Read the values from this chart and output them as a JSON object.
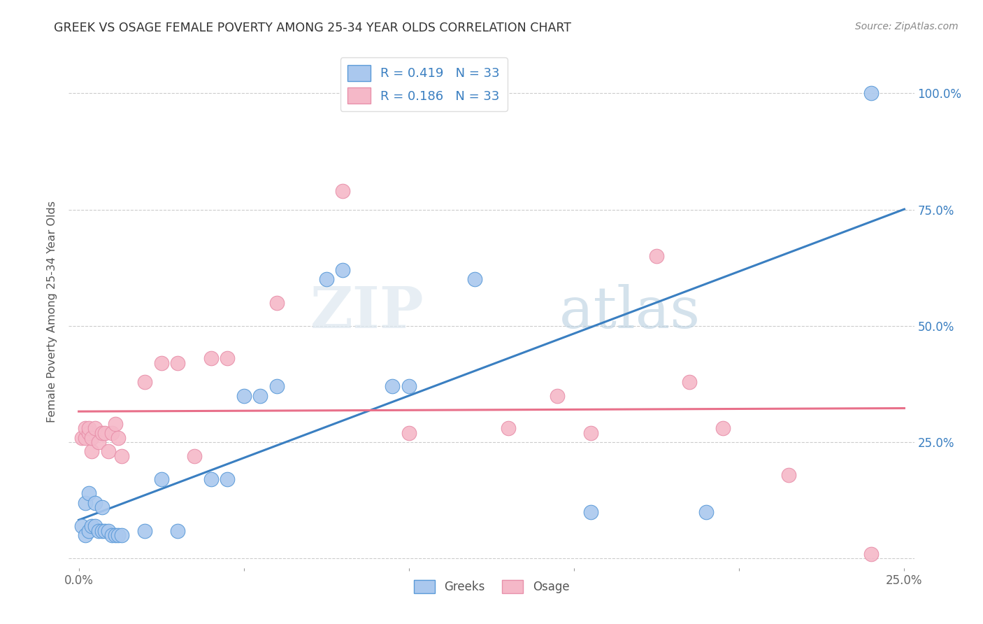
{
  "title": "GREEK VS OSAGE FEMALE POVERTY AMONG 25-34 YEAR OLDS CORRELATION CHART",
  "source": "Source: ZipAtlas.com",
  "ylabel": "Female Poverty Among 25-34 Year Olds",
  "watermark_zip": "ZIP",
  "watermark_atlas": "atlas",
  "xlim": [
    0.0,
    0.25
  ],
  "ylim": [
    -0.02,
    1.08
  ],
  "xtick_positions": [
    0.0,
    0.05,
    0.1,
    0.15,
    0.2,
    0.25
  ],
  "xticklabels": [
    "0.0%",
    "",
    "",
    "",
    "",
    "25.0%"
  ],
  "ytick_positions": [
    0.0,
    0.25,
    0.5,
    0.75,
    1.0
  ],
  "yticklabels_right": [
    "",
    "25.0%",
    "50.0%",
    "75.0%",
    "100.0%"
  ],
  "R_blue": "0.419",
  "N_blue": "33",
  "R_pink": "0.186",
  "N_pink": "33",
  "blue_fill": "#aac8ee",
  "pink_fill": "#f5b8c8",
  "blue_edge": "#5a9ad8",
  "pink_edge": "#e890aa",
  "blue_line": "#3a7fc1",
  "pink_line": "#e8708a",
  "label_blue": "Greeks",
  "label_pink": "Osage",
  "blue_x": [
    0.001,
    0.002,
    0.002,
    0.003,
    0.003,
    0.004,
    0.005,
    0.005,
    0.006,
    0.007,
    0.007,
    0.008,
    0.009,
    0.01,
    0.011,
    0.012,
    0.013,
    0.02,
    0.025,
    0.03,
    0.04,
    0.045,
    0.05,
    0.055,
    0.06,
    0.075,
    0.08,
    0.095,
    0.1,
    0.12,
    0.155,
    0.19,
    0.24
  ],
  "blue_y": [
    0.07,
    0.05,
    0.12,
    0.06,
    0.14,
    0.07,
    0.07,
    0.12,
    0.06,
    0.06,
    0.11,
    0.06,
    0.06,
    0.05,
    0.05,
    0.05,
    0.05,
    0.06,
    0.17,
    0.06,
    0.17,
    0.17,
    0.35,
    0.35,
    0.37,
    0.6,
    0.62,
    0.37,
    0.37,
    0.6,
    0.1,
    0.1,
    1.0
  ],
  "pink_x": [
    0.001,
    0.002,
    0.002,
    0.003,
    0.003,
    0.004,
    0.004,
    0.005,
    0.006,
    0.007,
    0.008,
    0.009,
    0.01,
    0.011,
    0.012,
    0.013,
    0.02,
    0.025,
    0.03,
    0.035,
    0.04,
    0.045,
    0.06,
    0.08,
    0.1,
    0.13,
    0.145,
    0.155,
    0.175,
    0.185,
    0.195,
    0.215,
    0.24
  ],
  "pink_y": [
    0.26,
    0.26,
    0.28,
    0.27,
    0.28,
    0.23,
    0.26,
    0.28,
    0.25,
    0.27,
    0.27,
    0.23,
    0.27,
    0.29,
    0.26,
    0.22,
    0.38,
    0.42,
    0.42,
    0.22,
    0.43,
    0.43,
    0.55,
    0.79,
    0.27,
    0.28,
    0.35,
    0.27,
    0.65,
    0.38,
    0.28,
    0.18,
    0.01
  ]
}
